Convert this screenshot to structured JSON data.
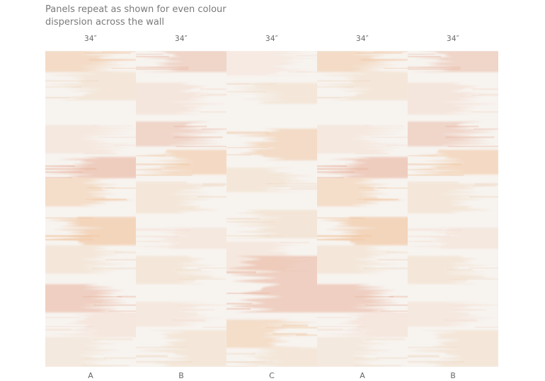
{
  "caption": {
    "line1": "Panels repeat as shown for even colour",
    "line2": "dispersion across the wall"
  },
  "panels": [
    {
      "width": "34″",
      "letter": "A",
      "pattern": "A"
    },
    {
      "width": "34″",
      "letter": "B",
      "pattern": "B"
    },
    {
      "width": "34″",
      "letter": "C",
      "pattern": "C"
    },
    {
      "width": "34″",
      "letter": "A",
      "pattern": "A"
    },
    {
      "width": "34″",
      "letter": "B",
      "pattern": "B"
    }
  ],
  "colors": {
    "base": "#f7f3ef",
    "peach": "#f1c9a6",
    "rose": "#e9b8a4",
    "sand": "#efd9c2",
    "blush": "#f4ddd0",
    "caption_text": "#7a7a7a",
    "label_text": "#666666"
  }
}
